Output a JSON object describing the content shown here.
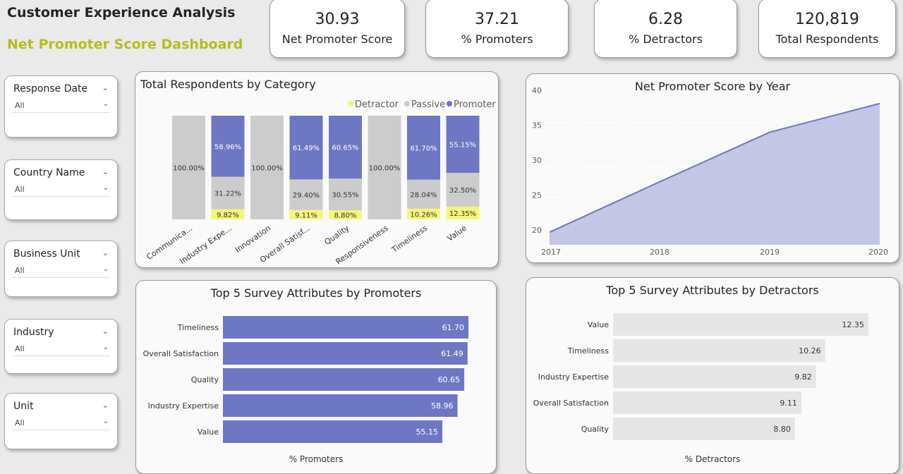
{
  "header": {
    "title": "Customer Experience Analysis",
    "subtitle": "Net Promoter Score Dashboard"
  },
  "kpis": [
    {
      "value": "30.93",
      "label": "Net Promoter Score"
    },
    {
      "value": "37.21",
      "label": "% Promoters"
    },
    {
      "value": "6.28",
      "label": "% Detractors"
    },
    {
      "value": "120,819",
      "label": "Total Respondents"
    }
  ],
  "slicers": [
    {
      "label": "Response Date",
      "value": "All"
    },
    {
      "label": "Country Name",
      "value": "All"
    },
    {
      "label": "Business Unit",
      "value": "All"
    },
    {
      "label": "Industry",
      "value": "All"
    },
    {
      "label": "Unit",
      "value": "All"
    }
  ],
  "colors": {
    "detractor": "#f5f57a",
    "passive": "#cccccc",
    "promoter": "#6e77c4",
    "area": "#c3c6e4",
    "hbar_gray": "#e6e6e6"
  },
  "chart_data": [
    {
      "type": "bar",
      "stacked": "100%",
      "title": "Total Respondents by Category",
      "legend": [
        "Detractor",
        "Passive",
        "Promoter"
      ],
      "legend_position": "top-right",
      "categories": [
        "Communica...",
        "Industry Expe...",
        "Innovation",
        "Overall Satisf...",
        "Quality",
        "Responsiveness",
        "Timeliness",
        "Value"
      ],
      "series": [
        {
          "name": "Detractor",
          "values": [
            0,
            9.82,
            0,
            9.11,
            8.8,
            0,
            10.26,
            12.35
          ],
          "labels": [
            "",
            "9.82%",
            "",
            "9.11%",
            "8.80%",
            "",
            "10.26%",
            "12.35%"
          ]
        },
        {
          "name": "Passive",
          "values": [
            100,
            31.22,
            100,
            29.4,
            30.55,
            100,
            28.04,
            32.5
          ],
          "labels": [
            "100.00%",
            "31.22%",
            "100.00%",
            "29.40%",
            "30.55%",
            "100.00%",
            "28.04%",
            "32.50%"
          ]
        },
        {
          "name": "Promoter",
          "values": [
            0,
            58.96,
            0,
            61.49,
            60.65,
            0,
            61.7,
            55.15
          ],
          "labels": [
            "",
            "58.96%",
            "",
            "61.49%",
            "60.65%",
            "",
            "61.70%",
            "55.15%"
          ]
        }
      ]
    },
    {
      "type": "area",
      "title": "Net Promoter Score by Year",
      "x": [
        "2017",
        "2018",
        "2019",
        "2020"
      ],
      "values": [
        19.7,
        26.9,
        34.0,
        38.1
      ],
      "ylim": [
        18,
        40
      ],
      "yticks": [
        "20",
        "25",
        "30",
        "35",
        "40"
      ],
      "grid": true
    },
    {
      "type": "bar",
      "orientation": "horizontal",
      "title": "Top 5 Survey Attributes by Promoters",
      "xlabel": "% Promoters",
      "categories": [
        "Timeliness",
        "Overall Satisfaction",
        "Quality",
        "Industry Expertise",
        "Value"
      ],
      "values": [
        61.7,
        61.49,
        60.65,
        58.96,
        55.15
      ],
      "labels": [
        "61.70",
        "61.49",
        "60.65",
        "58.96",
        "55.15"
      ]
    },
    {
      "type": "bar",
      "orientation": "horizontal",
      "title": "Top 5 Survey Attributes by Detractors",
      "xlabel": "% Detractors",
      "categories": [
        "Value",
        "Timeliness",
        "Industry Expertise",
        "Overall Satisfaction",
        "Quality"
      ],
      "values": [
        12.35,
        10.26,
        9.82,
        9.11,
        8.8
      ],
      "labels": [
        "12.35",
        "10.26",
        "9.82",
        "9.11",
        "8.80"
      ]
    }
  ]
}
